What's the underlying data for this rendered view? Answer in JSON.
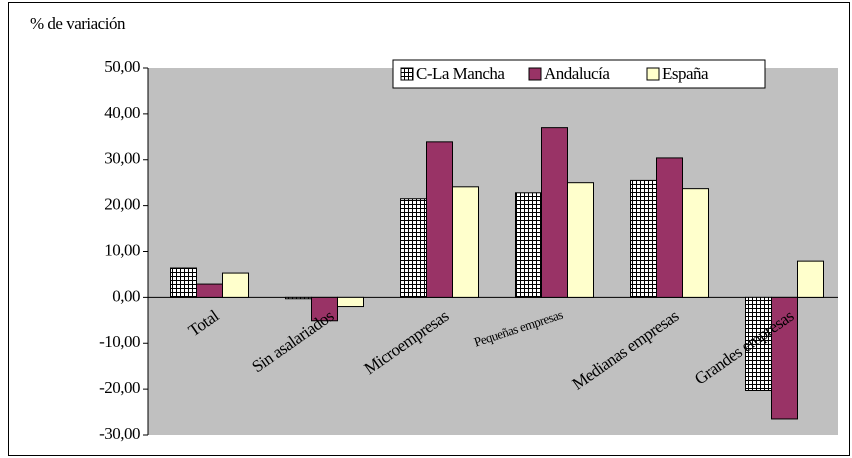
{
  "chart_data": {
    "type": "bar",
    "y_label": "% de variación",
    "categories": [
      "Total",
      "Sin asalariados",
      "Microempresas",
      "Pequeñas empresas",
      "Medianas empresas",
      "Grandes empresas"
    ],
    "series": [
      {
        "name": "C-La Mancha",
        "color": "#ffffff",
        "hatch": true,
        "values": [
          6.4,
          -0.3,
          21.5,
          22.8,
          25.5,
          -20.3
        ]
      },
      {
        "name": "Andalucía",
        "color": "#993366",
        "values": [
          2.9,
          -5.1,
          33.9,
          37.0,
          30.4,
          -26.5
        ]
      },
      {
        "name": "España",
        "color": "#ffffcc",
        "values": [
          5.3,
          -2.0,
          24.1,
          25.0,
          23.7,
          7.9
        ]
      }
    ],
    "ylim": [
      -30,
      50
    ],
    "yticks": [
      {
        "value": -30,
        "label": "-30,00"
      },
      {
        "value": -20,
        "label": "-20,00"
      },
      {
        "value": -10,
        "label": "-10,00"
      },
      {
        "value": 0,
        "label": "0,00"
      },
      {
        "value": 10,
        "label": "10,00"
      },
      {
        "value": 20,
        "label": "20,00"
      },
      {
        "value": 30,
        "label": "30,00"
      },
      {
        "value": 40,
        "label": "40,00"
      },
      {
        "value": 50,
        "label": "50,00"
      }
    ],
    "plot_background": "#c0c0c0",
    "legend": "top-right"
  }
}
